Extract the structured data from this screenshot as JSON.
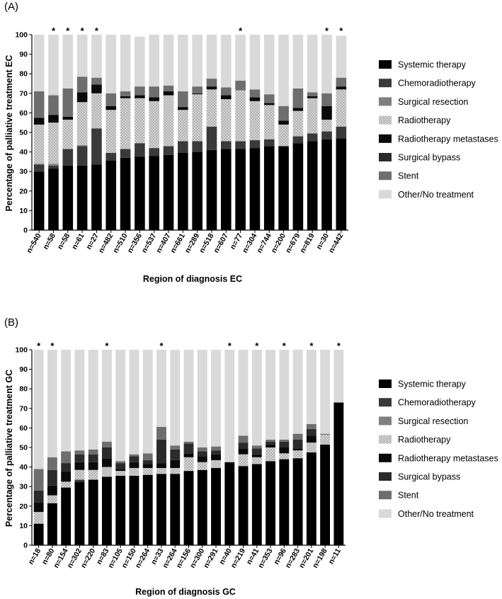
{
  "chart_data": [
    {
      "type": "bar",
      "stacked": true,
      "panel_label": "(A)",
      "xlabel": "Region of diagnosis EC",
      "ylabel": "Percentage of palliative treatment EC",
      "ylim": [
        0,
        100
      ],
      "yticks": [
        0,
        10,
        20,
        30,
        40,
        50,
        60,
        70,
        80,
        90,
        100
      ],
      "categories": [
        "n=540",
        "n=58",
        "n=58",
        "n=61",
        "n=27",
        "n=482",
        "n=510",
        "n=356",
        "n=537",
        "n=407",
        "n=661",
        "n=289",
        "n=518",
        "n=607",
        "n=77",
        "n=304",
        "n=744",
        "n=200",
        "n=679",
        "n=819",
        "n=30",
        "n=442"
      ],
      "asterisk": [
        false,
        true,
        true,
        true,
        true,
        false,
        false,
        false,
        false,
        false,
        false,
        false,
        false,
        false,
        true,
        false,
        false,
        false,
        false,
        false,
        true,
        true
      ],
      "series": [
        {
          "name": "Systemic therapy",
          "color": "#000000",
          "values": [
            30,
            31.5,
            33,
            33,
            33.5,
            35.5,
            37,
            37.5,
            38,
            38.5,
            39.5,
            40,
            41,
            41.5,
            41.5,
            42,
            43,
            43,
            44.5,
            45.5,
            46.5,
            47
          ]
        },
        {
          "name": "Chemoradiotherapy",
          "color": "#3a3a3a",
          "values": [
            3.5,
            1.5,
            8.5,
            10,
            18.5,
            4,
            4.5,
            7,
            4,
            4.5,
            6,
            5.5,
            12,
            4,
            4,
            4,
            3.5,
            0,
            3.5,
            4,
            4,
            6
          ]
        },
        {
          "name": "Surgical resection",
          "color": "#808080",
          "values": [
            0.5,
            1,
            0,
            0.5,
            0,
            0,
            0,
            0,
            0,
            0,
            0,
            0,
            0,
            0,
            0,
            0,
            0,
            0,
            0,
            0,
            0,
            0
          ]
        },
        {
          "name": "Radiotherapy",
          "color": "#c8c8c8",
          "values": [
            20,
            21,
            15,
            22,
            18,
            22,
            26,
            23,
            24,
            26,
            16,
            24,
            19,
            21.5,
            26,
            20,
            17.5,
            11,
            13,
            18,
            6,
            19
          ]
        },
        {
          "name": "Radiotherapy metastases",
          "color": "#0a0a0a",
          "values": [
            3.5,
            4,
            1.5,
            5,
            4.5,
            2,
            1,
            1.5,
            2,
            2,
            1.5,
            0.5,
            1.5,
            2,
            0,
            2,
            1,
            2,
            1.5,
            1,
            7,
            1.5
          ]
        },
        {
          "name": "Surgical bypass",
          "color": "#2b2b2b",
          "values": [
            0,
            0,
            0,
            0,
            0,
            0,
            0,
            0,
            0,
            0,
            0,
            0,
            0,
            0,
            0,
            0,
            0,
            0,
            0,
            0,
            0,
            0
          ]
        },
        {
          "name": "Stent",
          "color": "#6e6e6e",
          "values": [
            13.5,
            10,
            14.5,
            8,
            3.5,
            6.5,
            2.5,
            4.5,
            5.5,
            3,
            8,
            3.5,
            4,
            4,
            5,
            4,
            4.5,
            7.5,
            10,
            2,
            6.5,
            4.5
          ]
        },
        {
          "name": "Other/No treatment",
          "color": "#d9d9d9",
          "values": [
            29,
            31,
            27.5,
            21.5,
            22,
            30,
            29,
            25.5,
            26.5,
            26,
            29,
            26.5,
            22.5,
            27,
            23.5,
            28,
            30.5,
            36.5,
            27.5,
            29.5,
            30,
            21.5
          ]
        }
      ]
    },
    {
      "type": "bar",
      "stacked": true,
      "panel_label": "(B)",
      "xlabel": "Region of diagnosis GC",
      "ylabel": "Percentage of palliative treatment GC",
      "ylim": [
        0,
        100
      ],
      "yticks": [
        0,
        10,
        20,
        30,
        40,
        50,
        60,
        70,
        80,
        90,
        100
      ],
      "categories": [
        "n=18",
        "n=80",
        "n=154",
        "n=302",
        "n=220",
        "n=83",
        "n=105",
        "n=150",
        "n=264",
        "n=33",
        "n=264",
        "n=156",
        "n=300",
        "n=291",
        "n=40",
        "n=219",
        "n=41",
        "n=353",
        "n=96",
        "n=283",
        "n=201",
        "n=198",
        "n=11"
      ],
      "asterisk": [
        true,
        true,
        false,
        false,
        false,
        true,
        false,
        false,
        false,
        true,
        false,
        false,
        false,
        false,
        true,
        false,
        true,
        false,
        true,
        false,
        true,
        false,
        true
      ],
      "series": [
        {
          "name": "Systemic therapy",
          "color": "#000000",
          "values": [
            11,
            21.5,
            29.5,
            32.5,
            33.5,
            35,
            35.5,
            35.5,
            36,
            36.5,
            36.5,
            38,
            38.5,
            39.5,
            42.5,
            40.5,
            41.5,
            43,
            44,
            44.5,
            47.5,
            51.5,
            73
          ]
        },
        {
          "name": "Chemoradiotherapy",
          "color": "#3a3a3a",
          "values": [
            0,
            0,
            0,
            1,
            0,
            0,
            0,
            0,
            0,
            0,
            0,
            0,
            0,
            0,
            0,
            0,
            0,
            0,
            0,
            0,
            0,
            0,
            0
          ]
        },
        {
          "name": "Surgical resection",
          "color": "#808080",
          "values": [
            0,
            0,
            0,
            0,
            0,
            0,
            0,
            0,
            0,
            0,
            0,
            0,
            0,
            0,
            0,
            0,
            0,
            0,
            0,
            0,
            0,
            0,
            0
          ]
        },
        {
          "name": "Radiotherapy",
          "color": "#c8c8c8",
          "values": [
            6,
            4,
            3,
            5,
            5,
            5,
            2.5,
            4,
            3.5,
            3,
            3,
            7,
            4,
            4,
            0,
            6,
            3.5,
            7,
            3,
            4,
            5,
            5,
            0
          ]
        },
        {
          "name": "Radiotherapy metastases",
          "color": "#0a0a0a",
          "values": [
            5,
            5,
            5,
            4,
            4,
            4.5,
            1,
            3,
            2,
            2.5,
            4,
            2,
            3,
            3,
            0,
            3,
            1.5,
            1.5,
            3,
            1,
            3.5,
            0,
            0
          ]
        },
        {
          "name": "Surgical bypass",
          "color": "#2b2b2b",
          "values": [
            6,
            8,
            4.5,
            4,
            4,
            5.5,
            3,
            3,
            2,
            12,
            5.5,
            5,
            2.5,
            2,
            0,
            3,
            3,
            1.5,
            3,
            4.5,
            3.5,
            0,
            0
          ]
        },
        {
          "name": "Stent",
          "color": "#6e6e6e",
          "values": [
            11,
            6.5,
            6,
            2,
            2.5,
            3,
            1,
            1,
            3.5,
            6.5,
            2,
            1,
            2,
            2,
            0,
            3.5,
            1.5,
            1,
            1,
            3,
            2.5,
            0.5,
            0
          ]
        },
        {
          "name": "Other/No treatment",
          "color": "#d9d9d9",
          "values": [
            61,
            55,
            52,
            51.5,
            51,
            47,
            57,
            53.5,
            53,
            39.5,
            49,
            47,
            50,
            49.5,
            57.5,
            44,
            49,
            46,
            46,
            43,
            38,
            43,
            27
          ]
        }
      ]
    }
  ]
}
